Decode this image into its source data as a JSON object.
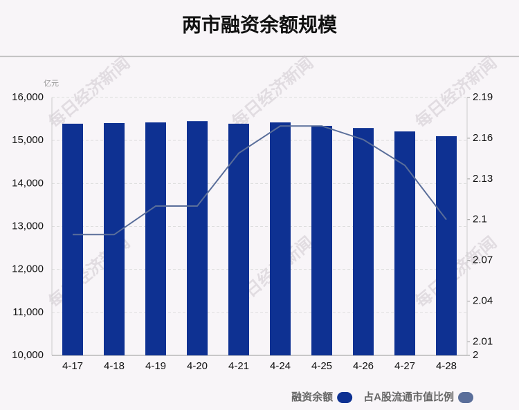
{
  "chart_data": {
    "type": "bar_line",
    "title": "两市融资余额规模",
    "y_unit": "亿元",
    "watermark": "每日经济新闻",
    "categories": [
      "4-17",
      "4-18",
      "4-19",
      "4-20",
      "4-21",
      "4-24",
      "4-25",
      "4-26",
      "4-27",
      "4-28"
    ],
    "series": [
      {
        "name": "融资余额",
        "type": "bar",
        "color": "#0e3192",
        "values": [
          15390,
          15405,
          15420,
          15450,
          15390,
          15420,
          15340,
          15290,
          15210,
          15100
        ]
      },
      {
        "name": "占A股流通市值比例",
        "type": "line",
        "axis": "y2",
        "color": "#5a6e9a",
        "values": [
          2.089,
          2.089,
          2.11,
          2.11,
          2.149,
          2.169,
          2.169,
          2.159,
          2.14,
          2.1
        ]
      }
    ],
    "ylim": [
      10000,
      16000
    ],
    "yticks": [
      {
        "value": 10000,
        "label": "10,000"
      },
      {
        "value": 11000,
        "label": "11,000"
      },
      {
        "value": 12000,
        "label": "12,000"
      },
      {
        "value": 13000,
        "label": "13,000"
      },
      {
        "value": 14000,
        "label": "14,000"
      },
      {
        "value": 15000,
        "label": "15,000"
      },
      {
        "value": 16000,
        "label": "16,000"
      }
    ],
    "y2lim": [
      2,
      2.19
    ],
    "y2ticks": [
      2,
      2.01,
      2.04,
      2.07,
      2.1,
      2.13,
      2.16,
      2.19
    ],
    "grid": true
  }
}
